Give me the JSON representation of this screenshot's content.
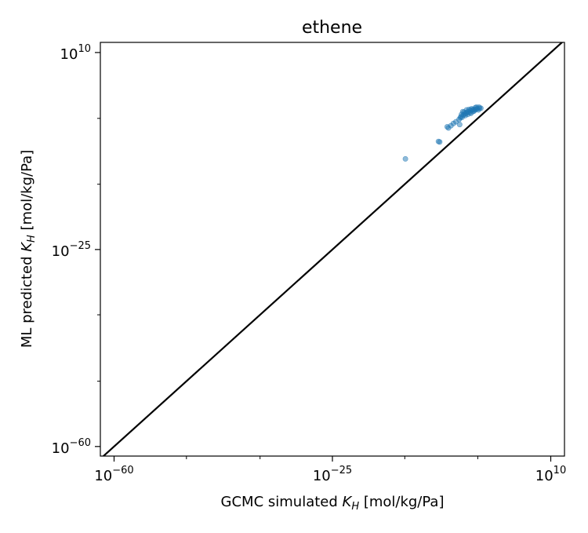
{
  "chart_data": {
    "type": "scatter",
    "title": "ethene",
    "xlabel": {
      "prefix": "GCMC simulated ",
      "symbol": "K",
      "sub": "H",
      "suffix": " [mol/kg/Pa]"
    },
    "ylabel": {
      "prefix": "ML predicted ",
      "symbol": "K",
      "sub": "H",
      "suffix": " [mol/kg/Pa]"
    },
    "xscale": "log",
    "yscale": "log",
    "xlim_log10": [
      -62.2,
      12.2
    ],
    "ylim_log10": [
      -61.7,
      11.8
    ],
    "x_major_ticks": [
      {
        "base": "10",
        "exp": "−60",
        "log10": -60
      },
      {
        "base": "10",
        "exp": "−25",
        "log10": -25
      },
      {
        "base": "10",
        "exp": "10",
        "log10": 10
      }
    ],
    "y_major_ticks": [
      {
        "base": "10",
        "exp": "−60",
        "log10": -60
      },
      {
        "base": "10",
        "exp": "−25",
        "log10": -25
      },
      {
        "base": "10",
        "exp": "10",
        "log10": 10
      }
    ],
    "x_minor_ticks_log10": [
      -48.4,
      -36.6,
      -13.4,
      -1.7
    ],
    "y_minor_ticks_log10": [
      -48.4,
      -36.6,
      -13.4,
      -1.7
    ],
    "reference_line": {
      "label": "y = x",
      "color": "#000000"
    },
    "series": [
      {
        "color": "#1f77b4",
        "opacity": 0.5,
        "points": [
          [
            -13.3,
            -8.9
          ],
          [
            -8.0,
            -5.8
          ],
          [
            -7.8,
            -5.9
          ],
          [
            -6.6,
            -3.2
          ],
          [
            -6.4,
            -3.4
          ],
          [
            -6.0,
            -3.0
          ],
          [
            -5.6,
            -2.6
          ],
          [
            -5.2,
            -2.3
          ],
          [
            -4.6,
            -2.8
          ],
          [
            -4.7,
            -1.9
          ],
          [
            -4.5,
            -1.6
          ],
          [
            -4.4,
            -1.4
          ],
          [
            -4.2,
            -1.5
          ],
          [
            -4.0,
            -1.1
          ],
          [
            -3.8,
            -0.9
          ],
          [
            -3.7,
            -1.2
          ],
          [
            -3.9,
            -0.6
          ],
          [
            -3.6,
            -0.8
          ],
          [
            -3.4,
            -0.6
          ],
          [
            -3.3,
            -1.0
          ],
          [
            -3.2,
            -0.5
          ],
          [
            -3.0,
            -0.7
          ],
          [
            -2.9,
            -0.3
          ],
          [
            -2.8,
            -0.8
          ],
          [
            -2.6,
            -0.2
          ],
          [
            -2.5,
            -0.5
          ],
          [
            -2.4,
            -0.1
          ],
          [
            -2.3,
            -0.4
          ],
          [
            -2.2,
            -0.2
          ],
          [
            -2.0,
            -0.1
          ],
          [
            -1.8,
            0.0
          ],
          [
            -1.6,
            -0.2
          ],
          [
            -1.4,
            0.1
          ],
          [
            -1.2,
            0.1
          ],
          [
            -3.5,
            -0.2
          ],
          [
            -3.1,
            -0.1
          ],
          [
            -2.7,
            0.0
          ],
          [
            -2.1,
            0.2
          ],
          [
            -1.9,
            0.3
          ],
          [
            -1.5,
            0.3
          ],
          [
            -4.1,
            -0.5
          ],
          [
            -4.3,
            -1.0
          ]
        ]
      }
    ]
  }
}
